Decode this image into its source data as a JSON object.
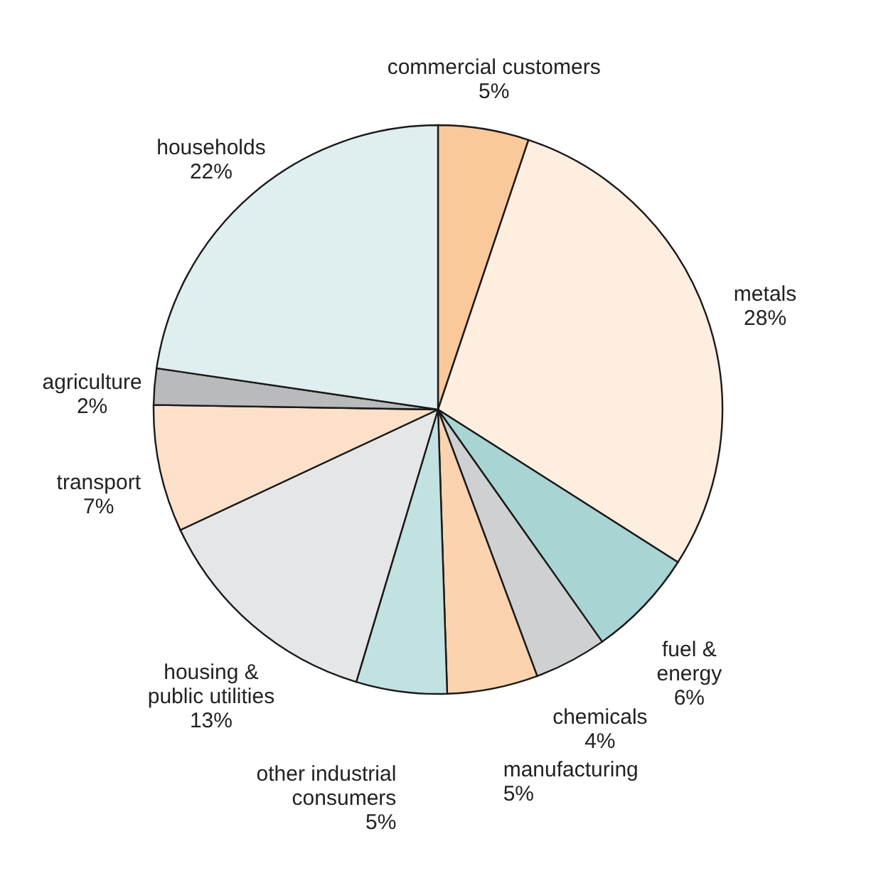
{
  "chart_data": {
    "type": "pie",
    "categories": [
      "commercial customers",
      "metals",
      "fuel &\nenergy",
      "chemicals",
      "manufacturing",
      "other industrial\nconsumers",
      "housing &\npublic utilities",
      "transport",
      "agriculture",
      "households"
    ],
    "values": [
      5,
      28,
      6,
      4,
      5,
      5,
      13,
      7,
      2,
      22
    ],
    "value_labels": [
      "5%",
      "28%",
      "6%",
      "4%",
      "5%",
      "5%",
      "13%",
      "7%",
      "2%",
      "22%"
    ],
    "colors": [
      "#f9c89b",
      "#fdeee0",
      "#a8d5d4",
      "#cfd0d2",
      "#fbd3ae",
      "#c2e2e1",
      "#e5e6e8",
      "#fde0c9",
      "#b9babd",
      "#dfeeee"
    ],
    "legend": false
  }
}
